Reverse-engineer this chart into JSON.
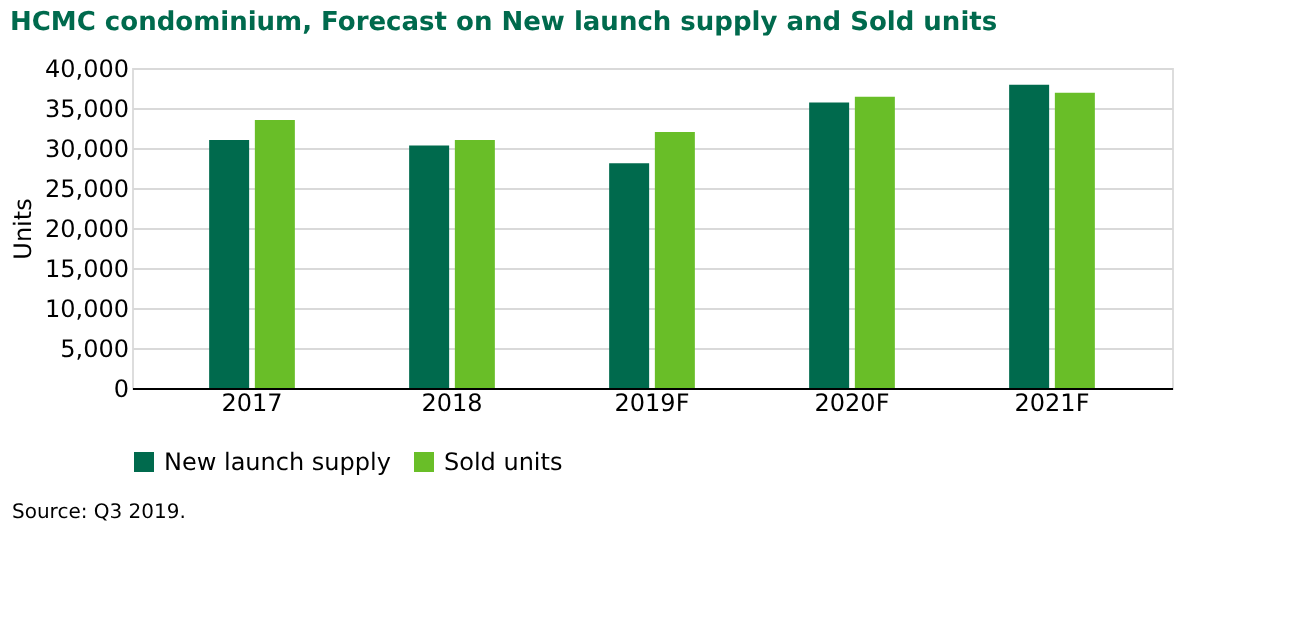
{
  "chart_data": {
    "type": "bar",
    "title": "HCMC condominium, Forecast on New launch supply and Sold units",
    "ylabel": "Units",
    "categories": [
      "2017",
      "2018",
      "2019F",
      "2020F",
      "2021F"
    ],
    "series": [
      {
        "name": "New launch supply",
        "color": "#006a4d",
        "values": [
          31000,
          30300,
          28100,
          35700,
          37900
        ]
      },
      {
        "name": "Sold units",
        "color": "#69be28",
        "values": [
          33500,
          31000,
          32000,
          36400,
          36900
        ]
      }
    ],
    "ylim": [
      0,
      40000
    ],
    "yticks": [
      0,
      {
        "value": 5000,
        "label": "5,000"
      },
      {
        "value": 10000,
        "label": "10,000"
      },
      {
        "value": 15000,
        "label": "15,000"
      },
      {
        "value": 20000,
        "label": "20,000"
      },
      {
        "value": 25000,
        "label": "25,000"
      },
      {
        "value": 30000,
        "label": "30,000"
      },
      {
        "value": 35000,
        "label": "35,000"
      },
      {
        "value": 40000,
        "label": "40,000"
      }
    ],
    "grid": "y",
    "legend": "bottom",
    "annotations": [
      "Source: Q3 2019."
    ]
  }
}
